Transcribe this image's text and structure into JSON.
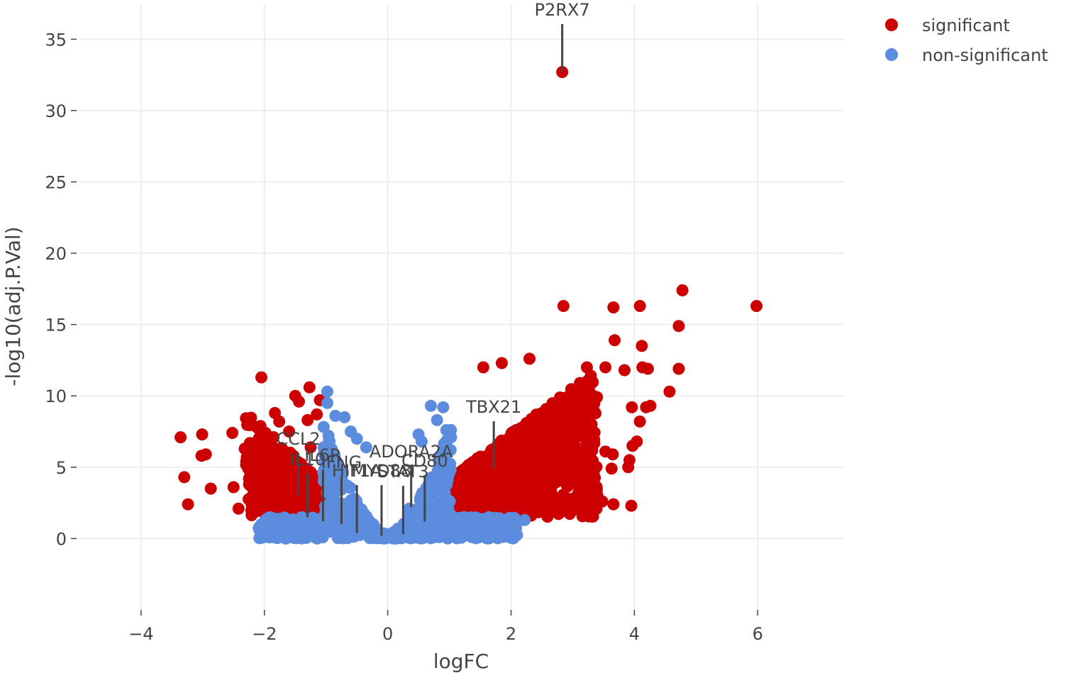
{
  "chart_data": {
    "type": "scatter",
    "title": "",
    "xlabel": "logFC",
    "ylabel": "-log10(adj.P.Val)",
    "xlim": [
      -5,
      7.4
    ],
    "ylim": [
      -5,
      37.5
    ],
    "x_ticks": [
      -4,
      -2,
      0,
      2,
      4,
      6
    ],
    "y_ticks": [
      0,
      5,
      10,
      15,
      20,
      25,
      30,
      35
    ],
    "x_tick_labels": [
      "−4",
      "−2",
      "0",
      "2",
      "4",
      "6"
    ],
    "y_tick_labels": [
      "0",
      "5",
      "10",
      "15",
      "20",
      "25",
      "30",
      "35"
    ],
    "grid": true,
    "legend_position": "top-right",
    "colors": {
      "significant": "#cc0000",
      "non_significant": "#5b8cdd"
    },
    "series": [
      {
        "name": "significant",
        "color": "#cc0000",
        "points": [
          [
            2.83,
            32.7
          ],
          [
            4.78,
            17.4
          ],
          [
            5.98,
            16.3
          ],
          [
            2.85,
            16.3
          ],
          [
            3.66,
            16.2
          ],
          [
            4.09,
            16.3
          ],
          [
            4.72,
            14.9
          ],
          [
            3.68,
            13.9
          ],
          [
            4.12,
            13.5
          ],
          [
            2.3,
            12.6
          ],
          [
            4.72,
            11.9
          ],
          [
            4.13,
            12.0
          ],
          [
            4.22,
            11.9
          ],
          [
            3.23,
            12.0
          ],
          [
            3.53,
            12.0
          ],
          [
            3.84,
            11.8
          ],
          [
            1.55,
            12.0
          ],
          [
            1.85,
            12.3
          ],
          [
            4.57,
            10.3
          ],
          [
            4.26,
            9.3
          ],
          [
            4.19,
            9.2
          ],
          [
            3.96,
            9.2
          ],
          [
            4.09,
            8.2
          ],
          [
            4.04,
            6.8
          ],
          [
            3.97,
            6.5
          ],
          [
            3.92,
            5.5
          ],
          [
            3.65,
            5.9
          ],
          [
            3.53,
            6.1
          ],
          [
            3.63,
            4.9
          ],
          [
            3.9,
            5.0
          ],
          [
            3.48,
            2.6
          ],
          [
            3.66,
            2.4
          ],
          [
            3.95,
            2.3
          ],
          [
            3.1,
            3.6
          ],
          [
            3.25,
            4.1
          ],
          [
            -3.36,
            7.1
          ],
          [
            -3.01,
            7.3
          ],
          [
            -3.3,
            4.3
          ],
          [
            -3.24,
            2.4
          ],
          [
            -2.87,
            3.5
          ],
          [
            -3.02,
            5.8
          ],
          [
            -2.95,
            5.9
          ],
          [
            -2.52,
            7.4
          ],
          [
            -2.5,
            3.6
          ],
          [
            -2.42,
            2.1
          ],
          [
            -2.05,
            11.3
          ],
          [
            -1.83,
            8.8
          ],
          [
            -1.76,
            8.2
          ],
          [
            -1.5,
            10.0
          ],
          [
            -1.44,
            9.6
          ],
          [
            -1.27,
            10.6
          ],
          [
            -1.15,
            8.7
          ],
          [
            -1.1,
            9.7
          ],
          [
            -1.3,
            8.3
          ],
          [
            -1.6,
            7.5
          ],
          [
            -2.2,
            6.6
          ],
          [
            -2.32,
            6.3
          ],
          [
            -2.1,
            6.0
          ],
          [
            -1.9,
            5.6
          ],
          [
            -1.7,
            5.2
          ],
          [
            -1.4,
            4.6
          ],
          [
            -2.25,
            4.2
          ],
          [
            -1.95,
            3.2
          ],
          [
            -1.55,
            3.6
          ],
          [
            -1.2,
            2.5
          ],
          [
            -1.35,
            3.0
          ],
          [
            -2.0,
            2.6
          ],
          [
            -1.85,
            2.0
          ],
          [
            -1.1,
            4.0
          ],
          [
            -1.25,
            6.4
          ]
        ]
      },
      {
        "name": "non-significant",
        "color": "#5b8cdd",
        "points": [
          [
            -0.98,
            10.3
          ],
          [
            -0.98,
            9.5
          ],
          [
            -0.85,
            8.6
          ],
          [
            -0.7,
            8.5
          ],
          [
            -0.6,
            7.5
          ],
          [
            -0.5,
            7.0
          ],
          [
            -0.35,
            6.4
          ],
          [
            0.7,
            9.3
          ],
          [
            0.9,
            9.2
          ],
          [
            0.8,
            8.3
          ],
          [
            0.95,
            7.6
          ],
          [
            0.55,
            6.8
          ],
          [
            0.5,
            7.3
          ],
          [
            2.22,
            1.3
          ],
          [
            1.85,
            1.0
          ],
          [
            -2.05,
            1.0
          ],
          [
            -1.75,
            1.1
          ],
          [
            -1.45,
            1.2
          ],
          [
            -0.95,
            1.8
          ],
          [
            -0.6,
            2.2
          ],
          [
            0.35,
            2.1
          ],
          [
            0.65,
            1.6
          ],
          [
            1.0,
            1.1
          ],
          [
            1.4,
            1.2
          ]
        ]
      }
    ],
    "annotations": [
      {
        "text": "P2RX7",
        "x": 2.83,
        "y": 32.7
      },
      {
        "text": "TBX21",
        "x": 1.72,
        "y": 4.9
      },
      {
        "text": "CCL2",
        "x": -1.45,
        "y": 3.0
      },
      {
        "text": "ADORA2A",
        "x": 0.38,
        "y": 2.2
      },
      {
        "text": "CD80",
        "x": 0.6,
        "y": 1.2
      },
      {
        "text": "IL10",
        "x": -1.3,
        "y": 1.5
      },
      {
        "text": "IL6R",
        "x": -1.05,
        "y": 1.2
      },
      {
        "text": "IFNG",
        "x": -0.75,
        "y": 1.0
      },
      {
        "text": "HIF1A",
        "x": -0.5,
        "y": 0.4
      },
      {
        "text": "MYD88",
        "x": -0.1,
        "y": 0.2
      },
      {
        "text": "STAT3",
        "x": 0.25,
        "y": 0.3
      }
    ]
  }
}
